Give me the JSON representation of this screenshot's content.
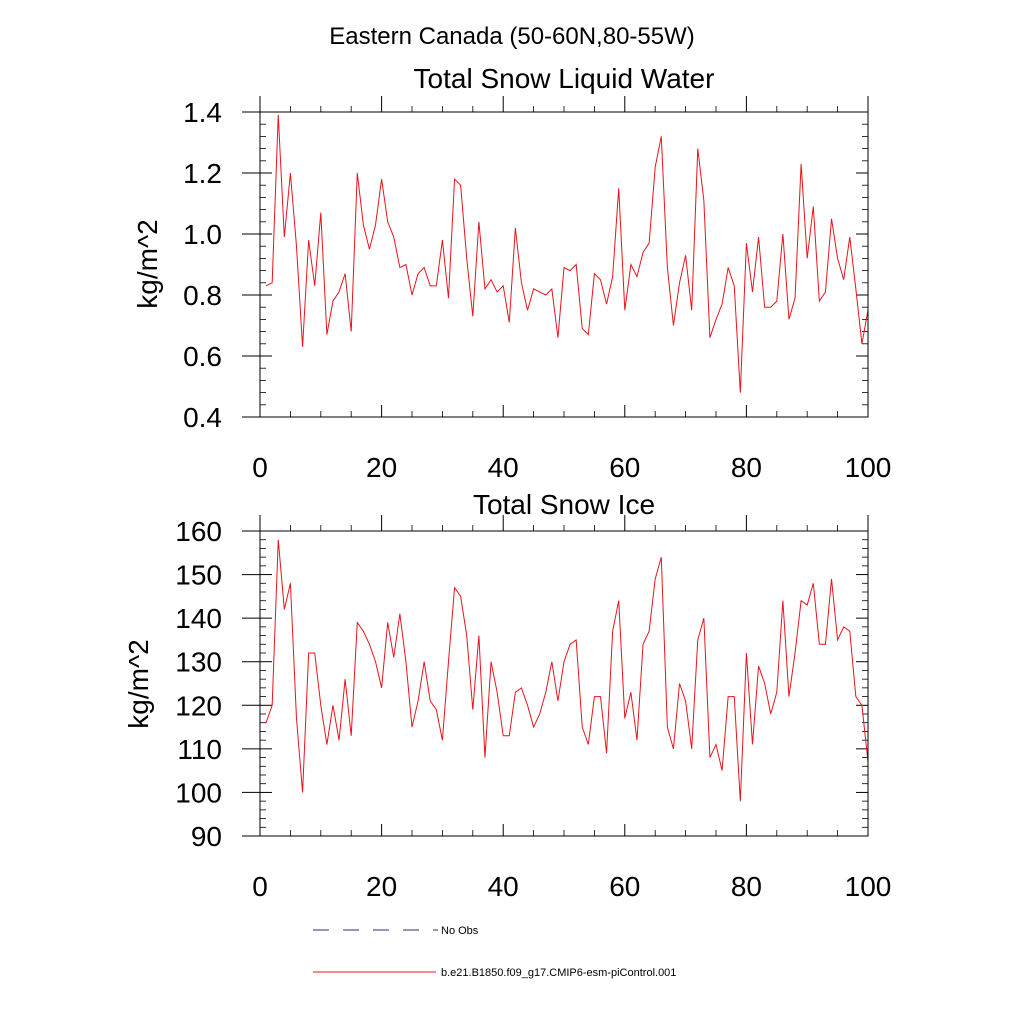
{
  "page": {
    "title": "Eastern Canada (50-60N,80-55W)"
  },
  "legend": {
    "items": [
      {
        "label": "No Obs",
        "color": "#2a2a7a",
        "style": "dashed"
      },
      {
        "label": "b.e21.B1850.f09_g17.CMIP6-esm-piControl.001",
        "color": "#e8141d",
        "style": "solid"
      }
    ]
  },
  "chart_data": [
    {
      "type": "line",
      "title": "Total Snow Liquid Water",
      "xlabel": "",
      "ylabel": "kg/m^2",
      "xlim": [
        0,
        100
      ],
      "ylim": [
        0.4,
        1.4
      ],
      "xticks": [
        0,
        20,
        40,
        60,
        80,
        100
      ],
      "yticks": [
        0.4,
        0.6,
        0.8,
        1.0,
        1.2,
        1.4
      ],
      "ytick_labels": [
        "0.4",
        "0.6",
        "0.8",
        "1.0",
        "1.2",
        "1.4"
      ],
      "grid": false,
      "series": [
        {
          "color": "#e8141d",
          "x": [
            1,
            2,
            3,
            4,
            5,
            6,
            7,
            8,
            9,
            10,
            11,
            12,
            13,
            14,
            15,
            16,
            17,
            18,
            19,
            20,
            21,
            22,
            23,
            24,
            25,
            26,
            27,
            28,
            29,
            30,
            31,
            32,
            33,
            34,
            35,
            36,
            37,
            38,
            39,
            40,
            41,
            42,
            43,
            44,
            45,
            46,
            47,
            48,
            49,
            50,
            51,
            52,
            53,
            54,
            55,
            56,
            57,
            58,
            59,
            60,
            61,
            62,
            63,
            64,
            65,
            66,
            67,
            68,
            69,
            70,
            71,
            72,
            73,
            74,
            75,
            76,
            77,
            78,
            79,
            80,
            81,
            82,
            83,
            84,
            85,
            86,
            87,
            88,
            89,
            90,
            91,
            92,
            93,
            94,
            95,
            96,
            97,
            98,
            99,
            100
          ],
          "values": [
            0.83,
            0.84,
            1.39,
            0.99,
            1.2,
            0.96,
            0.63,
            0.98,
            0.83,
            1.07,
            0.67,
            0.78,
            0.81,
            0.87,
            0.68,
            1.2,
            1.03,
            0.95,
            1.03,
            1.18,
            1.04,
            0.99,
            0.89,
            0.9,
            0.8,
            0.87,
            0.89,
            0.83,
            0.83,
            0.98,
            0.79,
            1.18,
            1.16,
            0.92,
            0.73,
            1.04,
            0.82,
            0.85,
            0.81,
            0.83,
            0.71,
            1.02,
            0.84,
            0.75,
            0.82,
            0.81,
            0.8,
            0.82,
            0.66,
            0.89,
            0.88,
            0.9,
            0.69,
            0.67,
            0.87,
            0.85,
            0.77,
            0.86,
            1.15,
            0.75,
            0.9,
            0.86,
            0.94,
            0.97,
            1.22,
            1.32,
            0.89,
            0.7,
            0.84,
            0.93,
            0.75,
            1.28,
            1.11,
            0.66,
            0.72,
            0.77,
            0.89,
            0.83,
            0.48,
            0.97,
            0.81,
            0.99,
            0.76,
            0.76,
            0.78,
            1.0,
            0.72,
            0.79,
            1.23,
            0.92,
            1.09,
            0.78,
            0.81,
            1.05,
            0.92,
            0.85,
            0.99,
            0.82,
            0.64,
            0.75
          ]
        }
      ]
    },
    {
      "type": "line",
      "title": "Total Snow Ice",
      "xlabel": "",
      "ylabel": "kg/m^2",
      "xlim": [
        0,
        100
      ],
      "ylim": [
        90,
        160
      ],
      "xticks": [
        0,
        20,
        40,
        60,
        80,
        100
      ],
      "yticks": [
        90,
        100,
        110,
        120,
        130,
        140,
        150,
        160
      ],
      "ytick_labels": [
        "90",
        "100",
        "110",
        "120",
        "130",
        "140",
        "150",
        "160"
      ],
      "grid": false,
      "series": [
        {
          "color": "#e8141d",
          "x": [
            1,
            2,
            3,
            4,
            5,
            6,
            7,
            8,
            9,
            10,
            11,
            12,
            13,
            14,
            15,
            16,
            17,
            18,
            19,
            20,
            21,
            22,
            23,
            24,
            25,
            26,
            27,
            28,
            29,
            30,
            31,
            32,
            33,
            34,
            35,
            36,
            37,
            38,
            39,
            40,
            41,
            42,
            43,
            44,
            45,
            46,
            47,
            48,
            49,
            50,
            51,
            52,
            53,
            54,
            55,
            56,
            57,
            58,
            59,
            60,
            61,
            62,
            63,
            64,
            65,
            66,
            67,
            68,
            69,
            70,
            71,
            72,
            73,
            74,
            75,
            76,
            77,
            78,
            79,
            80,
            81,
            82,
            83,
            84,
            85,
            86,
            87,
            88,
            89,
            90,
            91,
            92,
            93,
            94,
            95,
            96,
            97,
            98,
            99,
            100
          ],
          "values": [
            116,
            120,
            158,
            142,
            148,
            117,
            100,
            132,
            132,
            120,
            111,
            120,
            112,
            126,
            113,
            139,
            137,
            134,
            130,
            124,
            139,
            131,
            141,
            130,
            115,
            121,
            130,
            121,
            119,
            112,
            130,
            147,
            145,
            136,
            119,
            136,
            108,
            130,
            123,
            113,
            113,
            123,
            124,
            120,
            115,
            118,
            123,
            130,
            121,
            130,
            134,
            135,
            115,
            111,
            122,
            122,
            109,
            137,
            144,
            117,
            123,
            112,
            134,
            137,
            149,
            154,
            115,
            110,
            125,
            121,
            110,
            135,
            140,
            108,
            111,
            105,
            122,
            122,
            98,
            132,
            111,
            129,
            125,
            118,
            123,
            144,
            122,
            132,
            144,
            143,
            148,
            134,
            134,
            149,
            135,
            138,
            137,
            122,
            120,
            107
          ]
        }
      ]
    }
  ]
}
